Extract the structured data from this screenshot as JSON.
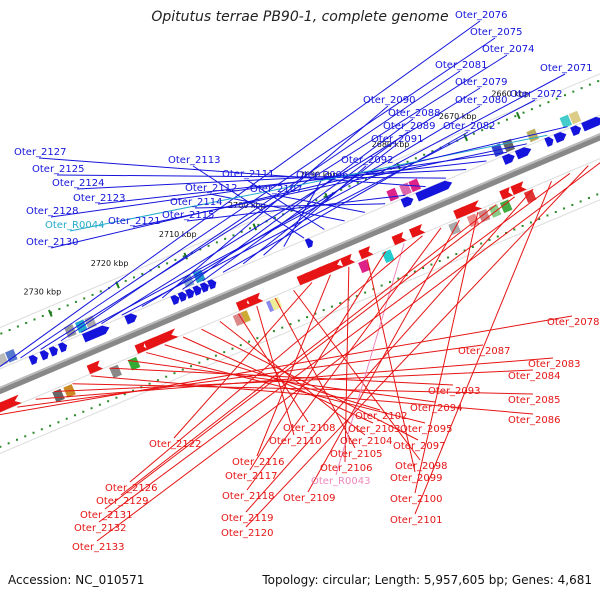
{
  "title": "Opitutus terrae PB90-1, complete genome",
  "footer": {
    "accession": "Accession: NC_010571",
    "summary": "Topology: circular; Length: 5,957,605 bp; Genes: 4,681"
  },
  "ticks": [
    "2660 kbp",
    "2670 kbp",
    "2680 kbp",
    "2690 kbp",
    "2700 kbp",
    "2710 kbp",
    "2720 kbp",
    "2730 kbp"
  ],
  "upper_labels": [
    "Oter_2076",
    "Oter_2075",
    "Oter_2074",
    "Oter_2081",
    "Oter_2071",
    "Oter_2079",
    "Oter_2072",
    "Oter_2080",
    "Oter_2090",
    "Oter_2088",
    "Oter_2089",
    "Oter_2082",
    "Oter_2091",
    "Oter_2092",
    "Oter_2096",
    "Oter_2113",
    "Oter_2111",
    "Oter_2112",
    "Oter_2107",
    "Oter_2114",
    "Oter_2115",
    "Oter_2127",
    "Oter_2125",
    "Oter_2124",
    "Oter_2123",
    "Oter_2128",
    "Oter_2121",
    "Oter_R0044",
    "Oter_2130"
  ],
  "lower_labels": [
    "Oter_2078",
    "Oter_2087",
    "Oter_2083",
    "Oter_2084",
    "Oter_2085",
    "Oter_2086",
    "Oter_2093",
    "Oter_2094",
    "Oter_2095",
    "Oter_2102",
    "Oter_2103",
    "Oter_2097",
    "Oter_2104",
    "Oter_2108",
    "Oter_2110",
    "Oter_2105",
    "Oter_2098",
    "Oter_2122",
    "Oter_2116",
    "Oter_2106",
    "Oter_2099",
    "Oter_2117",
    "Oter_R0043",
    "Oter_2126",
    "Oter_2118",
    "Oter_2109",
    "Oter_2100",
    "Oter_2129",
    "Oter_2131",
    "Oter_2119",
    "Oter_2101",
    "Oter_2132",
    "Oter_2120",
    "Oter_2133"
  ],
  "colors": {
    "forward": "#1414dc",
    "reverse": "#e61414",
    "rna_upper": "#22aacc",
    "rna_lower": "#ee88bb",
    "backbone": "#888888"
  }
}
